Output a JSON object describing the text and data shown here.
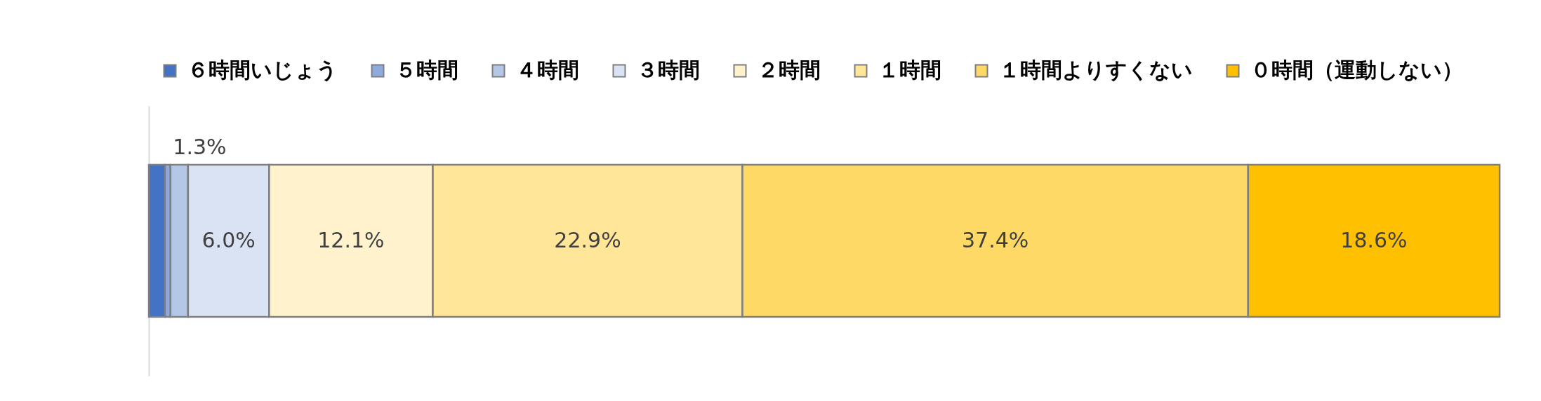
{
  "chart_data": {
    "type": "bar",
    "orientation": "horizontal",
    "stacked": true,
    "categories": [
      null
    ],
    "series": [
      {
        "name": "６時間いじょう",
        "color": "#4472c4",
        "values": [
          1.2
        ],
        "value_labels": [
          null
        ]
      },
      {
        "name": "５時間",
        "color": "#8faadc",
        "values": [
          0.4
        ],
        "value_labels": [
          null
        ]
      },
      {
        "name": "４時間",
        "color": "#b4c7e7",
        "values": [
          1.3
        ],
        "value_labels": [
          "1.3%"
        ]
      },
      {
        "name": "３時間",
        "color": "#dae3f3",
        "values": [
          6.0
        ],
        "value_labels": [
          "6.0%"
        ]
      },
      {
        "name": "２時間",
        "color": "#fff2cc",
        "values": [
          12.1
        ],
        "value_labels": [
          "12.1%"
        ]
      },
      {
        "name": "１時間",
        "color": "#ffe699",
        "values": [
          22.9
        ],
        "value_labels": [
          "22.9%"
        ]
      },
      {
        "name": "１時間よりすくない",
        "color": "#ffd966",
        "values": [
          37.4
        ],
        "value_labels": [
          "37.4%"
        ]
      },
      {
        "name": "０時間（運動しない）",
        "color": "#ffc000",
        "values": [
          18.6
        ],
        "value_labels": [
          "18.6%"
        ]
      }
    ],
    "xlim": [
      0,
      100
    ],
    "legend": "top",
    "tick_labels": false
  }
}
